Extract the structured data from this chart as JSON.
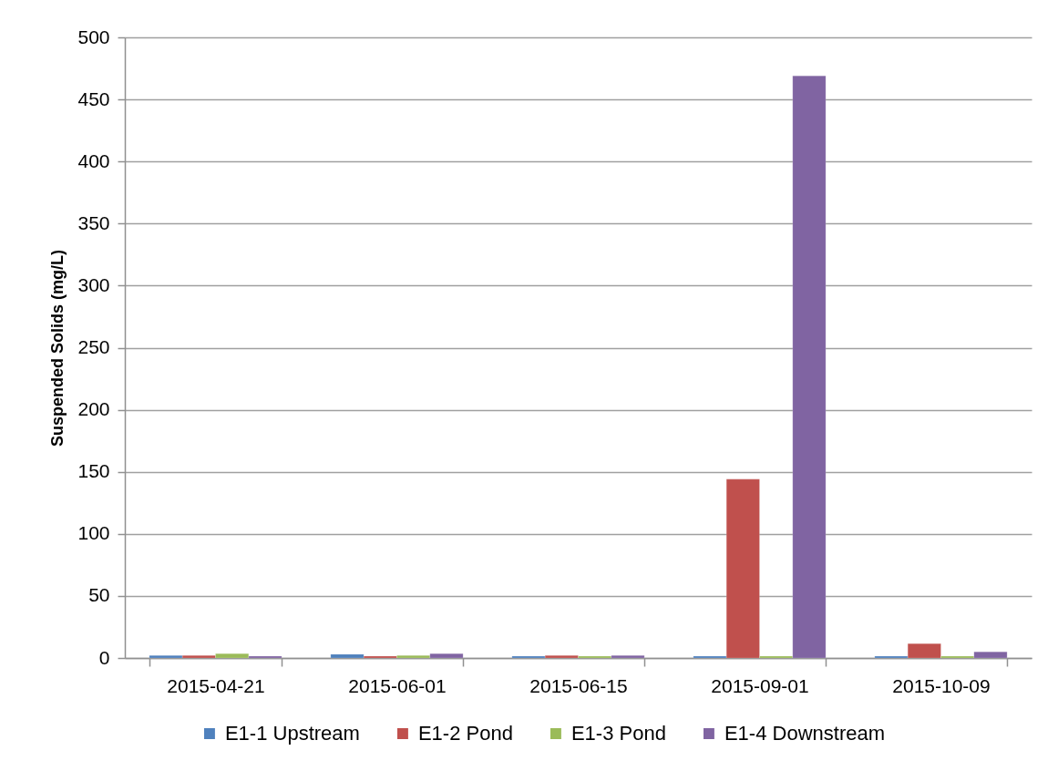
{
  "chart_data": {
    "type": "bar",
    "ylabel": "Suspended Solids (mg/L)",
    "categories": [
      "2015-04-21",
      "2015-06-01",
      "2015-06-15",
      "2015-09-01",
      "2015-10-09"
    ],
    "series": [
      {
        "name": "E1-1 Upstream",
        "color": "#4f81bd",
        "values": [
          2,
          3,
          1.5,
          1.5,
          1.5
        ]
      },
      {
        "name": "E1-2 Pond",
        "color": "#c0504d",
        "values": [
          2,
          1.5,
          2,
          144,
          11.5
        ]
      },
      {
        "name": "E1-3 Pond",
        "color": "#9bbb59",
        "values": [
          3.5,
          2,
          1.5,
          1.5,
          1.5
        ]
      },
      {
        "name": "E1-4 Downstream",
        "color": "#8064a2",
        "values": [
          1.5,
          3.5,
          2,
          469,
          5
        ]
      }
    ],
    "ylim": [
      0,
      500
    ],
    "yticks": [
      0,
      50,
      100,
      150,
      200,
      250,
      300,
      350,
      400,
      450,
      500
    ],
    "grid": "y",
    "legend": "bottom"
  }
}
